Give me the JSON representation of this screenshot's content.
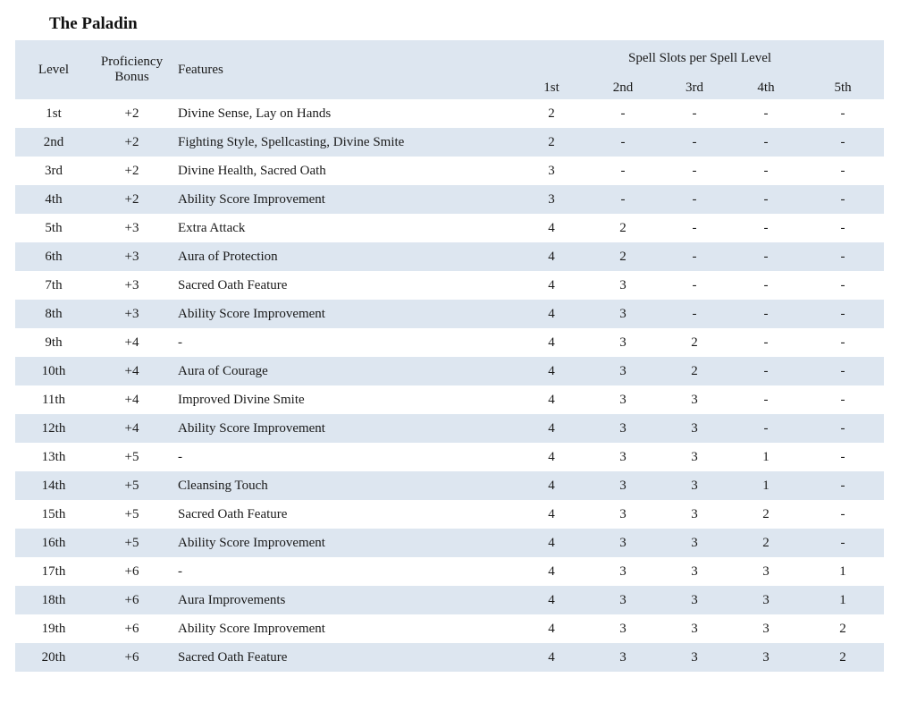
{
  "title": "The Paladin",
  "colors": {
    "band": "#dde6f0",
    "text": "#1a1a1a",
    "background": "#ffffff"
  },
  "table": {
    "header": {
      "level": "Level",
      "proficiency_bonus": "Proficiency Bonus",
      "features": "Features",
      "spell_slots_group": "Spell Slots per Spell Level",
      "spell_levels": [
        "1st",
        "2nd",
        "3rd",
        "4th",
        "5th"
      ]
    },
    "rows": [
      {
        "level": "1st",
        "bonus": "+2",
        "features": "Divine Sense, Lay on Hands",
        "slots": [
          "2",
          "-",
          "-",
          "-",
          "-"
        ]
      },
      {
        "level": "2nd",
        "bonus": "+2",
        "features": "Fighting Style, Spellcasting, Divine Smite",
        "slots": [
          "2",
          "-",
          "-",
          "-",
          "-"
        ]
      },
      {
        "level": "3rd",
        "bonus": "+2",
        "features": "Divine Health, Sacred Oath",
        "slots": [
          "3",
          "-",
          "-",
          "-",
          "-"
        ]
      },
      {
        "level": "4th",
        "bonus": "+2",
        "features": "Ability Score Improvement",
        "slots": [
          "3",
          "-",
          "-",
          "-",
          "-"
        ]
      },
      {
        "level": "5th",
        "bonus": "+3",
        "features": "Extra Attack",
        "slots": [
          "4",
          "2",
          "-",
          "-",
          "-"
        ]
      },
      {
        "level": "6th",
        "bonus": "+3",
        "features": "Aura of Protection",
        "slots": [
          "4",
          "2",
          "-",
          "-",
          "-"
        ]
      },
      {
        "level": "7th",
        "bonus": "+3",
        "features": "Sacred Oath Feature",
        "slots": [
          "4",
          "3",
          "-",
          "-",
          "-"
        ]
      },
      {
        "level": "8th",
        "bonus": "+3",
        "features": "Ability Score Improvement",
        "slots": [
          "4",
          "3",
          "-",
          "-",
          "-"
        ]
      },
      {
        "level": "9th",
        "bonus": "+4",
        "features": "-",
        "slots": [
          "4",
          "3",
          "2",
          "-",
          "-"
        ]
      },
      {
        "level": "10th",
        "bonus": "+4",
        "features": "Aura of Courage",
        "slots": [
          "4",
          "3",
          "2",
          "-",
          "-"
        ]
      },
      {
        "level": "11th",
        "bonus": "+4",
        "features": "Improved Divine Smite",
        "slots": [
          "4",
          "3",
          "3",
          "-",
          "-"
        ]
      },
      {
        "level": "12th",
        "bonus": "+4",
        "features": "Ability Score Improvement",
        "slots": [
          "4",
          "3",
          "3",
          "-",
          "-"
        ]
      },
      {
        "level": "13th",
        "bonus": "+5",
        "features": "-",
        "slots": [
          "4",
          "3",
          "3",
          "1",
          "-"
        ]
      },
      {
        "level": "14th",
        "bonus": "+5",
        "features": "Cleansing Touch",
        "slots": [
          "4",
          "3",
          "3",
          "1",
          "-"
        ]
      },
      {
        "level": "15th",
        "bonus": "+5",
        "features": "Sacred Oath Feature",
        "slots": [
          "4",
          "3",
          "3",
          "2",
          "-"
        ]
      },
      {
        "level": "16th",
        "bonus": "+5",
        "features": "Ability Score Improvement",
        "slots": [
          "4",
          "3",
          "3",
          "2",
          "-"
        ]
      },
      {
        "level": "17th",
        "bonus": "+6",
        "features": "-",
        "slots": [
          "4",
          "3",
          "3",
          "3",
          "1"
        ]
      },
      {
        "level": "18th",
        "bonus": "+6",
        "features": "Aura Improvements",
        "slots": [
          "4",
          "3",
          "3",
          "3",
          "1"
        ]
      },
      {
        "level": "19th",
        "bonus": "+6",
        "features": "Ability Score Improvement",
        "slots": [
          "4",
          "3",
          "3",
          "3",
          "2"
        ]
      },
      {
        "level": "20th",
        "bonus": "+6",
        "features": "Sacred Oath Feature",
        "slots": [
          "4",
          "3",
          "3",
          "3",
          "2"
        ]
      }
    ]
  }
}
